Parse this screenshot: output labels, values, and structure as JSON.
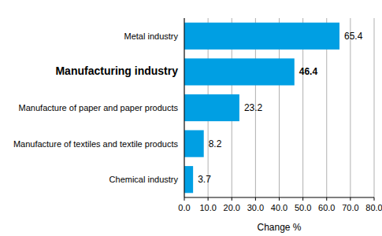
{
  "chart_data": {
    "type": "bar",
    "orientation": "horizontal",
    "categories": [
      "Metal industry",
      "Manufacturing industry",
      "Manufacture of paper and paper products",
      "Manufacture of textiles and textile products",
      "Chemical industry"
    ],
    "values": [
      65.4,
      46.4,
      23.2,
      8.2,
      3.7
    ],
    "color": "#009fe3",
    "x_label": "Change %",
    "xlim": [
      0,
      80
    ],
    "xticks": [
      {
        "value": 0,
        "label": "0.0"
      },
      {
        "value": 10,
        "label": "10.0"
      },
      {
        "value": 20,
        "label": "20.0"
      },
      {
        "value": 30,
        "label": "30.0"
      },
      {
        "value": 40,
        "label": "40.0"
      },
      {
        "value": 50,
        "label": "50.0"
      },
      {
        "value": 60,
        "label": "60.0"
      },
      {
        "value": 70,
        "label": "70.0"
      },
      {
        "value": 80,
        "label": "80.0"
      }
    ],
    "grid": true,
    "data_labels": true
  }
}
